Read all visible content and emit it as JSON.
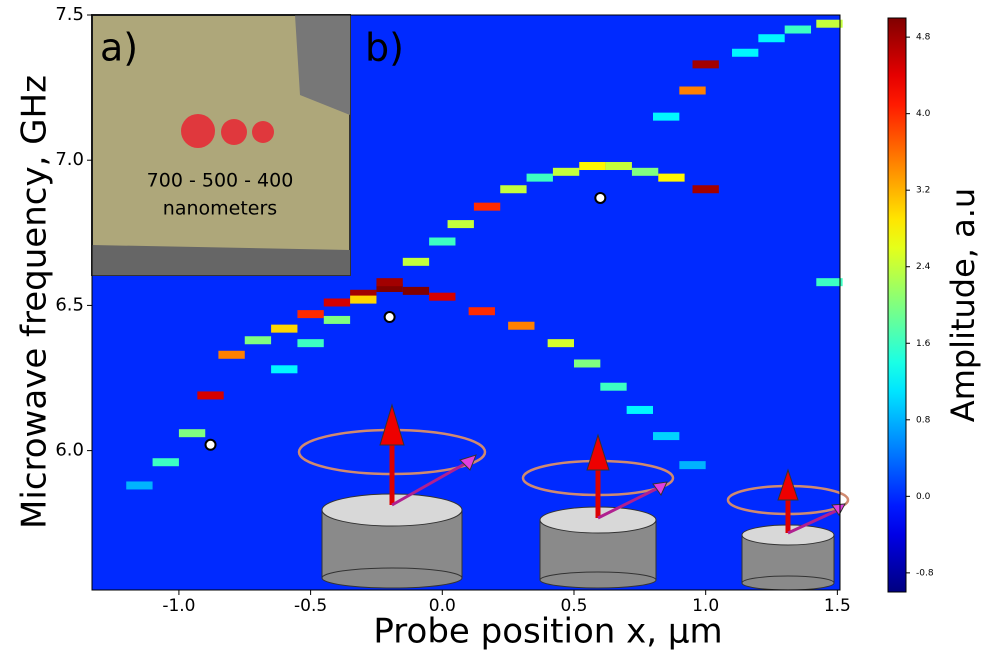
{
  "chart_data": {
    "type": "heatmap",
    "xlabel": "Probe position x, μm",
    "ylabel": "Microwave frequency, GHz",
    "colorbar_label": "Amplitude, a.u",
    "xlim": [
      -1.33,
      1.51
    ],
    "ylim": [
      5.52,
      7.5
    ],
    "clim": [
      -1.0,
      5.0
    ],
    "xticks": [
      {
        "value": -1,
        "label": "-1.0"
      },
      -0.5,
      {
        "value": 0,
        "label": "0.0"
      },
      0.5,
      {
        "value": 1,
        "label": "1.0"
      },
      1.5
    ],
    "yticks": [
      {
        "value": 6,
        "label": "6.0"
      },
      6.5,
      {
        "value": 7,
        "label": "7.0"
      },
      7.5
    ],
    "cticks": [
      -0.8,
      {
        "value": 0,
        "label": "0.0"
      },
      0.8,
      1.6,
      2.4,
      3.2,
      {
        "value": 4,
        "label": "4.0"
      },
      4.8
    ],
    "colormap": "jet",
    "background_value": 0,
    "resonances": {
      "x": [
        -1.15,
        -1.05,
        -0.95,
        -0.88,
        -0.8,
        -0.7,
        -0.6,
        -0.5,
        -0.4,
        -0.3,
        -0.2,
        -0.1,
        0.0,
        0.15,
        0.3,
        0.45,
        0.55,
        0.65,
        0.75,
        0.85,
        0.95,
        -0.6,
        -0.5,
        -0.4,
        -0.3,
        -0.2,
        -0.1,
        0.0,
        0.07,
        0.17,
        0.27,
        0.37,
        0.47,
        0.57,
        0.67,
        0.77,
        0.87,
        1.0,
        0.95,
        1.0,
        0.85,
        1.15,
        1.25,
        1.35,
        1.47,
        1.47
      ],
      "y": [
        5.88,
        5.96,
        6.06,
        6.19,
        6.33,
        6.38,
        6.42,
        6.47,
        6.51,
        6.54,
        6.56,
        6.55,
        6.53,
        6.48,
        6.43,
        6.37,
        6.3,
        6.22,
        6.14,
        6.05,
        5.95,
        6.28,
        6.37,
        6.45,
        6.52,
        6.58,
        6.65,
        6.72,
        6.78,
        6.84,
        6.9,
        6.94,
        6.96,
        6.98,
        6.98,
        6.96,
        6.94,
        6.9,
        7.24,
        7.33,
        7.15,
        7.37,
        7.42,
        7.45,
        7.47,
        6.58
      ],
      "values": [
        0.8,
        1.6,
        2.0,
        4.5,
        3.5,
        2.0,
        3.0,
        4.0,
        4.5,
        4.8,
        5.0,
        5.0,
        4.5,
        4.0,
        3.5,
        2.5,
        2.0,
        1.6,
        1.2,
        1.0,
        0.8,
        1.2,
        1.6,
        2.0,
        3.0,
        4.8,
        2.4,
        1.6,
        2.4,
        4.0,
        2.4,
        1.6,
        2.4,
        2.8,
        2.4,
        2.0,
        2.8,
        4.8,
        3.5,
        4.8,
        1.2,
        1.2,
        1.2,
        1.6,
        2.4,
        1.6
      ]
    },
    "markers": {
      "x": [
        -0.88,
        -0.2,
        0.6
      ],
      "y": [
        6.02,
        6.46,
        6.87
      ]
    },
    "panel_labels": [
      "a)",
      "b)"
    ],
    "inset_text": [
      "700 - 500 - 400",
      "nanometers"
    ]
  }
}
